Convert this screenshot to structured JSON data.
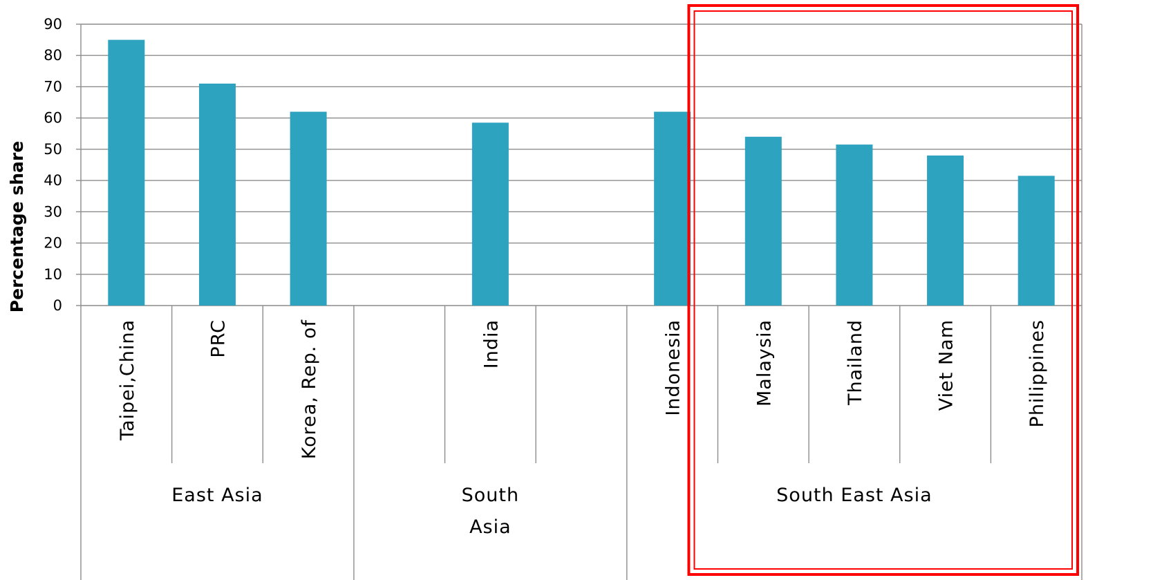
{
  "chart_data": {
    "type": "bar",
    "title": "",
    "xlabel": "",
    "ylabel": "Percentage share",
    "ylim": [
      0,
      90
    ],
    "yticks": [
      0,
      10,
      20,
      30,
      40,
      50,
      60,
      70,
      80,
      90
    ],
    "grid": true,
    "categories": [
      "Taipei,China",
      "PRC",
      "Korea, Rep. of",
      "",
      "India",
      "",
      "Indonesia",
      "Malaysia",
      "Thailand",
      "Viet Nam",
      "Philippines"
    ],
    "values": [
      85,
      71,
      62,
      null,
      58.5,
      null,
      62,
      54,
      51.5,
      48,
      41.5
    ],
    "groups": [
      {
        "label": "East Asia",
        "start": 0,
        "end": 3
      },
      {
        "label": "South\nAsia",
        "start": 3,
        "end": 6
      },
      {
        "label": "South East Asia",
        "start": 6,
        "end": 11
      }
    ],
    "highlight": {
      "start": 7,
      "end": 11,
      "color": "#ff0000"
    },
    "colors": {
      "bar": "#2ea3bf",
      "grid": "#8c8c8c",
      "axis": "#8c8c8c"
    }
  }
}
